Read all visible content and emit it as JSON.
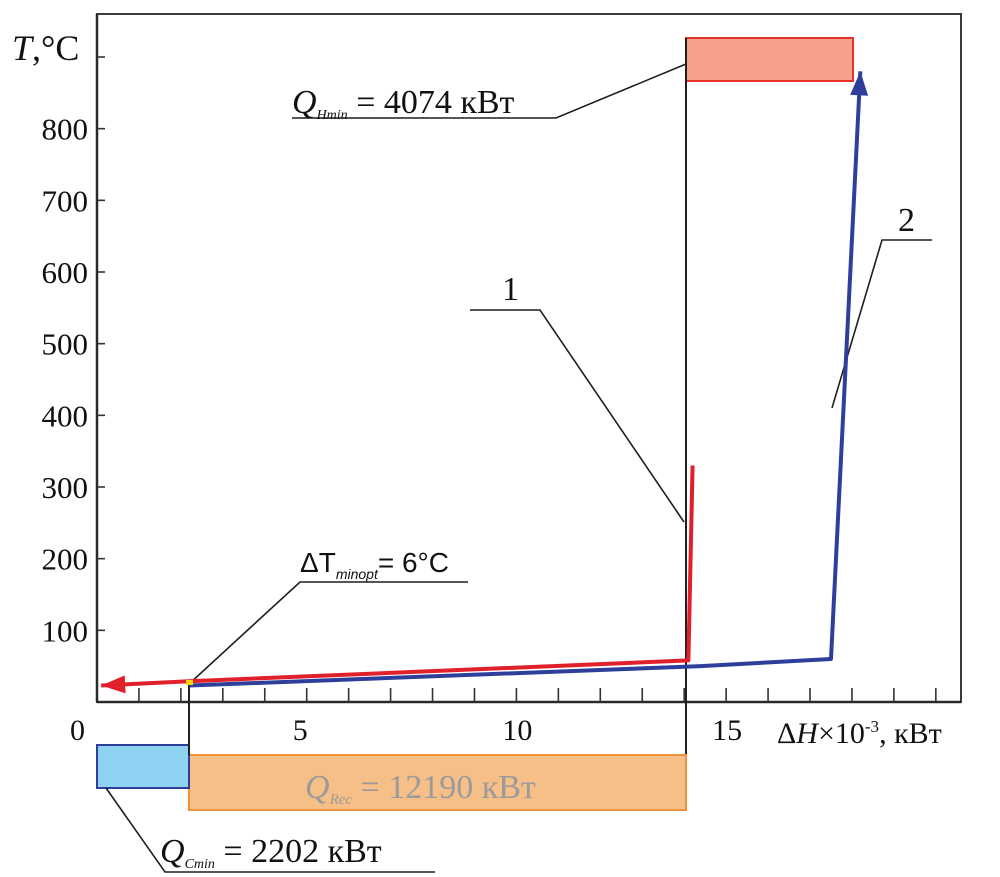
{
  "chart_data": {
    "type": "line",
    "title": "",
    "xlabel": {
      "delta": "Δ",
      "var": "H",
      "times": "×10",
      "exp": "-3",
      "unit": ", кВт"
    },
    "ylabel": {
      "var": "T",
      "unit": ",°C"
    },
    "xlim": [
      0,
      20.6
    ],
    "ylim": [
      0,
      960
    ],
    "x_ticks": [
      {
        "value": 0,
        "label": "0"
      },
      {
        "value": 5,
        "label": "5"
      },
      {
        "value": 10,
        "label": "10"
      },
      {
        "value": 15,
        "label": "15"
      }
    ],
    "y_ticks": [
      {
        "value": 100,
        "label": "100"
      },
      {
        "value": 200,
        "label": "200"
      },
      {
        "value": 300,
        "label": "300"
      },
      {
        "value": 400,
        "label": "400"
      },
      {
        "value": 500,
        "label": "500"
      },
      {
        "value": 600,
        "label": "600"
      },
      {
        "value": 700,
        "label": "700"
      },
      {
        "value": 800,
        "label": "800"
      }
    ],
    "series": [
      {
        "name": "1",
        "label": "1",
        "color": "#e0202a",
        "points": [
          [
            0.1,
            23
          ],
          [
            2.2,
            29
          ],
          [
            14.1,
            58
          ],
          [
            14.2,
            330
          ]
        ],
        "arrow": "start"
      },
      {
        "name": "2",
        "label": "2",
        "color": "#2e3f9b",
        "points": [
          [
            2.2,
            23
          ],
          [
            14.4,
            50
          ],
          [
            17.5,
            60
          ],
          [
            18.2,
            880
          ]
        ],
        "arrow": "end"
      }
    ],
    "annotations": [
      {
        "id": "q_hmin",
        "prefix": "Q",
        "sub": "Hmin",
        "text": " = 4074 кВт",
        "fill": "#f4a08a",
        "stroke": "#e8332d"
      },
      {
        "id": "q_rec",
        "prefix": "Q",
        "sub": "Rec",
        "text": " = 12190 кВт",
        "fill": "#f7bf88",
        "stroke": "#f0903a"
      },
      {
        "id": "q_cmin",
        "prefix": "Q",
        "sub": "Cmin",
        "text": " = 2202 кВт",
        "fill": "#8ed3f2",
        "stroke": "#2e3f9b"
      },
      {
        "id": "dt",
        "prefix": "ΔT",
        "sub": "minopt",
        "text": "= 6°C",
        "marker": "#ffd400"
      }
    ]
  }
}
